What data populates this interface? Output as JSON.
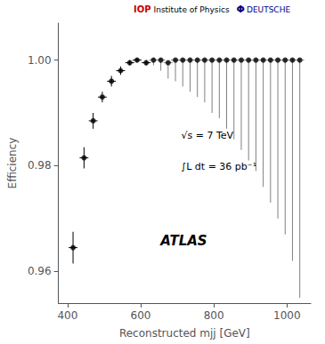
{
  "chart_data": {
    "type": "scatter",
    "xlabel": "Reconstructed mjj [GeV]",
    "ylabel": "Efficiency",
    "annotations": [
      "IOP",
      "Institute of Physics",
      "Φ",
      "DEUTSCHE",
      "√s = 7 TeV",
      "∫L dt = 36 pb⁻¹",
      "ATLAS"
    ],
    "xlim": [
      375,
      1065
    ],
    "ylim": [
      0.954,
      1.007
    ],
    "xticks": [
      400,
      600,
      800,
      1000
    ],
    "yticks": [
      0.96,
      0.98,
      {
        "value": 1.0,
        "label": "1.00"
      }
    ],
    "grid": false,
    "color": "black",
    "marker": "circle",
    "series": [
      {
        "color": "black",
        "x": [
          415,
          445,
          470,
          495,
          520,
          545,
          570,
          590,
          615
        ],
        "values": [
          0.9645,
          0.9815,
          0.9885,
          0.993,
          0.996,
          0.998,
          0.9995,
          1.0,
          0.9995
        ],
        "xerr": [
          12,
          12,
          12,
          12,
          12,
          12,
          12,
          12,
          12
        ],
        "yerr_low": [
          0.003,
          0.002,
          0.0015,
          0.001,
          0.001,
          0.0008,
          0.0005,
          0.0004,
          0.0005
        ],
        "yerr_high": [
          0.003,
          0.002,
          0.0015,
          0.001,
          0.001,
          0.0008,
          0.0005,
          0.0004,
          0.0005
        ]
      },
      {
        "color": "gray",
        "x": [
          635,
          655,
          675,
          695,
          715,
          735,
          755,
          775,
          795,
          815,
          835,
          855,
          875,
          895,
          915,
          935,
          955,
          975,
          995,
          1015,
          1035
        ],
        "values": [
          1.0,
          1.0,
          0.9995,
          1.0,
          1.0,
          1.0,
          1.0,
          1.0,
          1.0,
          1.0,
          1.0,
          1.0,
          1.0,
          1.0,
          1.0,
          1.0,
          1.0,
          1.0,
          1.0,
          1.0,
          1.0
        ],
        "xerr": [
          12,
          12,
          12,
          12,
          12,
          12,
          12,
          12,
          12,
          12,
          12,
          12,
          12,
          12,
          12,
          12,
          12,
          12,
          12,
          12,
          12
        ],
        "yerr_low": [
          0.001,
          0.002,
          0.003,
          0.004,
          0.005,
          0.006,
          0.007,
          0.008,
          0.01,
          0.011,
          0.013,
          0.015,
          0.017,
          0.019,
          0.021,
          0.024,
          0.027,
          0.03,
          0.033,
          0.038,
          0.045
        ],
        "yerr_high": [
          0.0003,
          0.0003,
          0.0003,
          0.0003,
          0.0003,
          0.0003,
          0.0003,
          0.0003,
          0.0003,
          0.0003,
          0.0003,
          0.0003,
          0.0003,
          0.0003,
          0.0003,
          0.0003,
          0.0003,
          0.0003,
          0.0003,
          0.0003,
          0.0003
        ]
      }
    ]
  }
}
